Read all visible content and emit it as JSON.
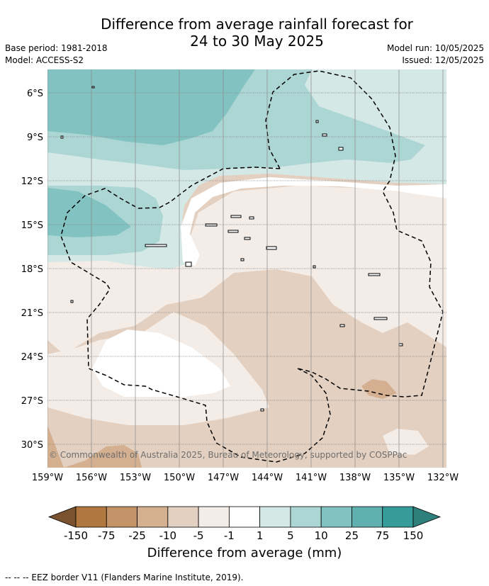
{
  "title_line1": "Difference from average rainfall forecast for",
  "title_line2": "24 to 30 May 2025",
  "base_period": "Base period: 1981-2018",
  "model": "Model: ACCESS-S2",
  "model_run": "Model run: 10/05/2025",
  "issued": "Issued: 12/05/2025",
  "copyright": "© Commonwealth of Australia 2025, Bureau of Meteorology, supported by COSPPac",
  "lat_labels": [
    "6°S",
    "9°S",
    "12°S",
    "15°S",
    "18°S",
    "21°S",
    "24°S",
    "27°S",
    "30°S"
  ],
  "lon_labels": [
    "159°W",
    "156°W",
    "153°W",
    "150°W",
    "147°W",
    "144°W",
    "141°W",
    "138°W",
    "135°W",
    "132°W"
  ],
  "colorbar": {
    "labels": [
      "-150",
      "-75",
      "-25",
      "-10",
      "-5",
      "-1",
      "1",
      "5",
      "10",
      "25",
      "75",
      "150"
    ],
    "colors": [
      "#7a5230",
      "#b07840",
      "#c49468",
      "#d4b090",
      "#e3d0c0",
      "#f4ece6",
      "#ffffff",
      "#d4e8e6",
      "#acd6d4",
      "#82c3c1",
      "#5fb0ae",
      "#369c9a",
      "#2f7f7d"
    ],
    "label": "Difference from average (mm)"
  },
  "footer": "--  --  -- EEZ border V11 (Flanders Marine Institute, 2019)."
}
